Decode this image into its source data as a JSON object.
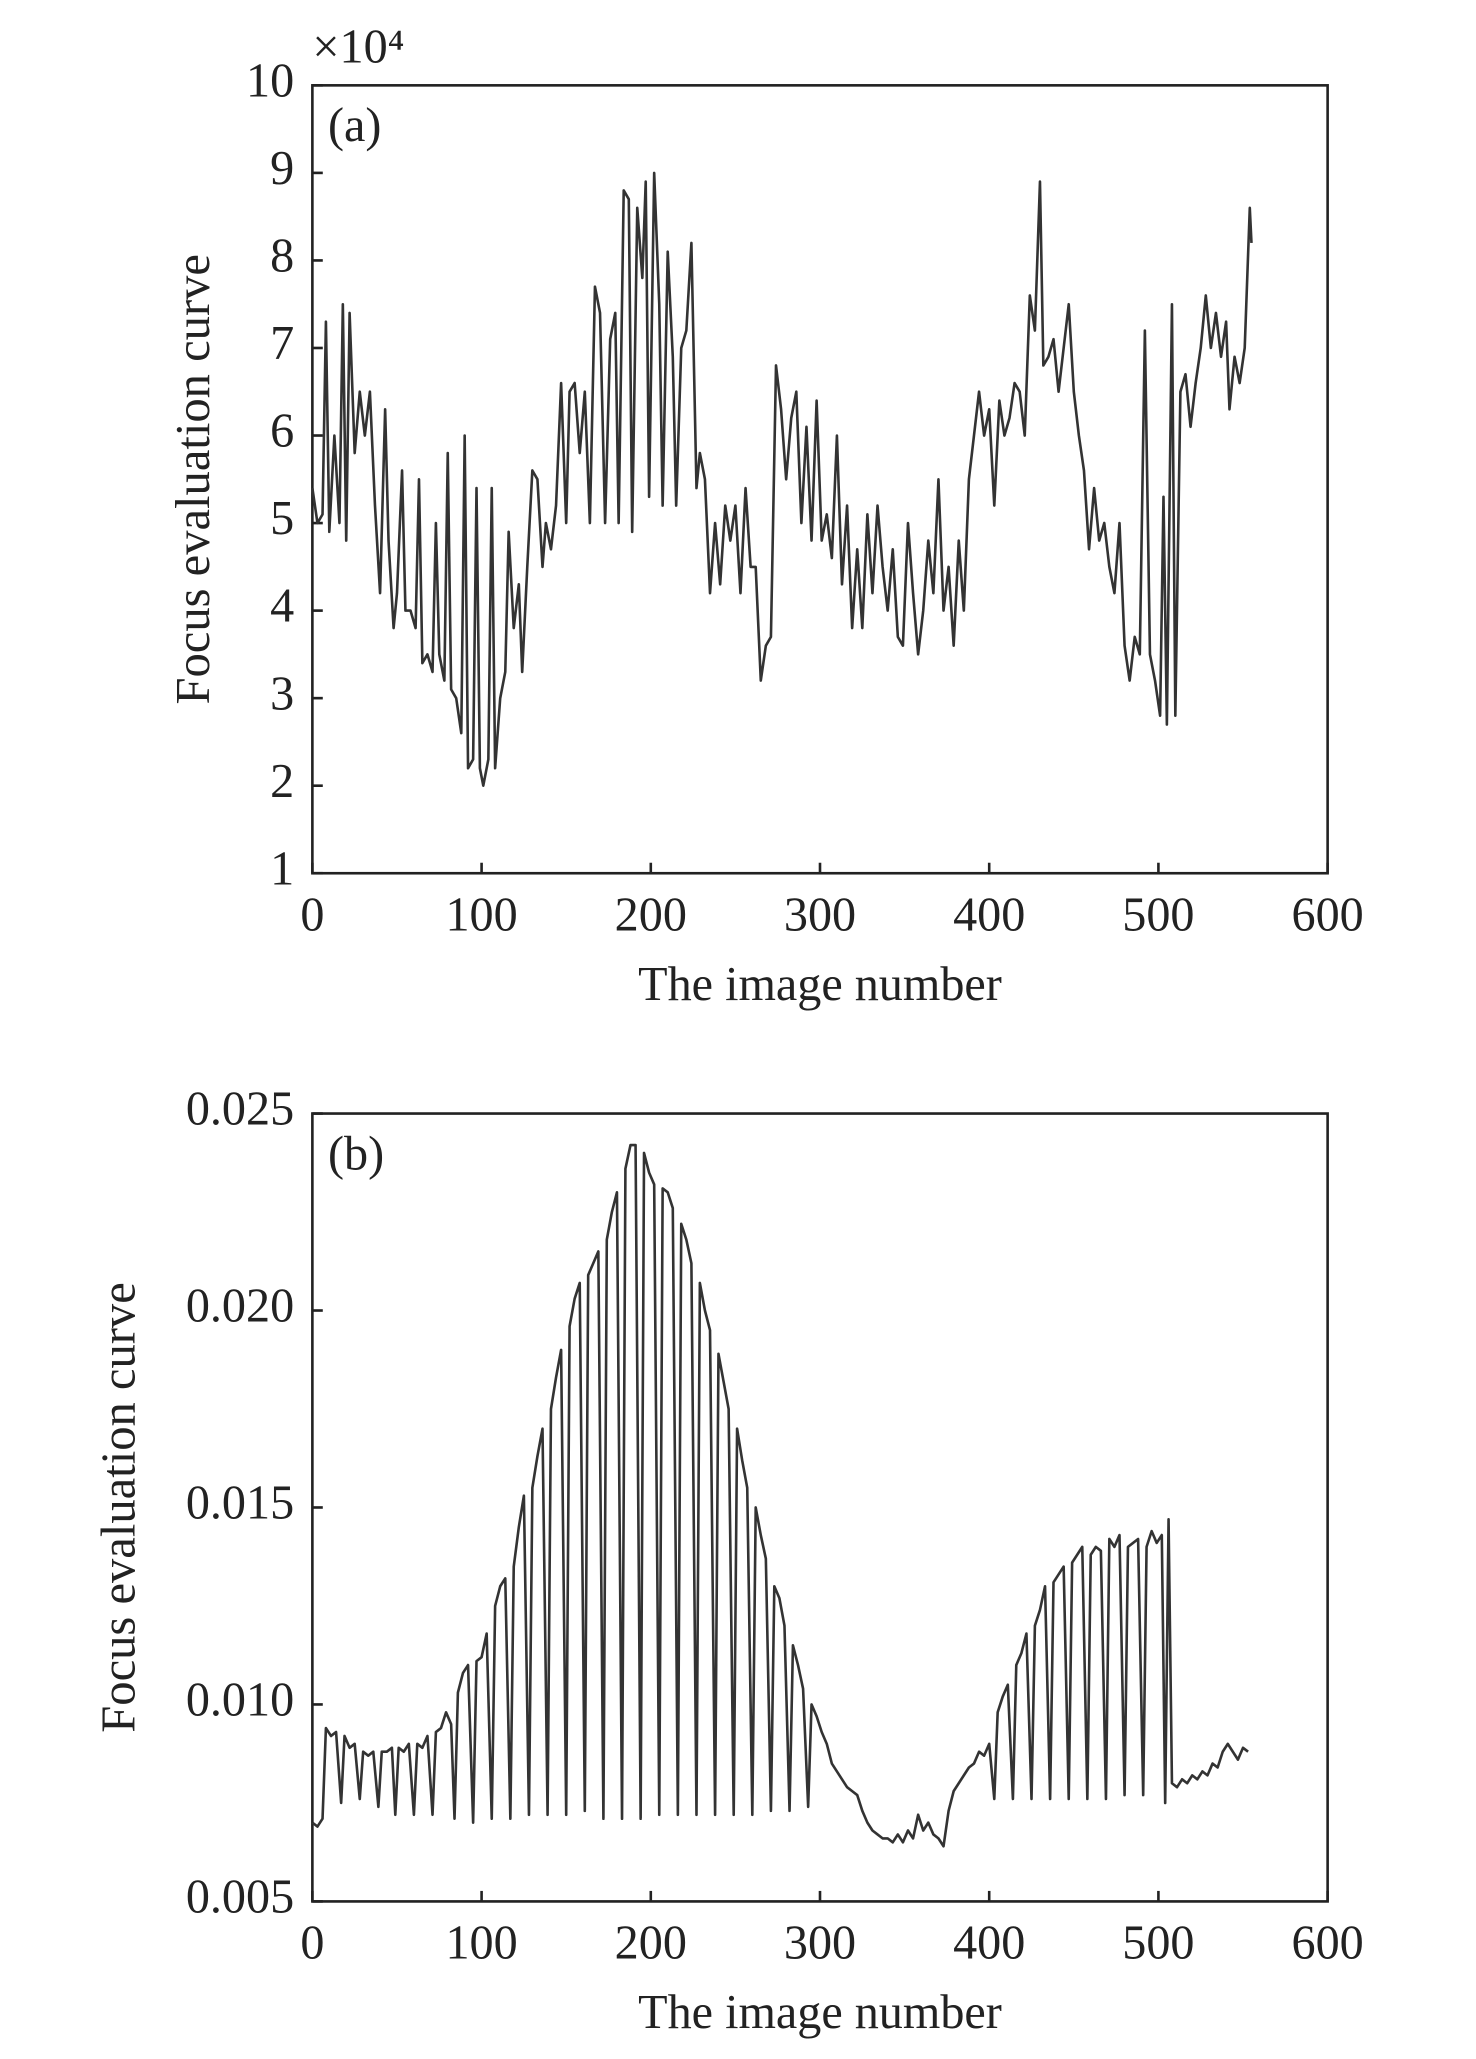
{
  "chart_data": [
    {
      "type": "line",
      "panel_label": "(a)",
      "multiplier": "×10⁴",
      "x_label": "The image number",
      "y_label": "Focus evaluation curve",
      "xlim": [
        0,
        600
      ],
      "xticks": [
        0,
        100,
        200,
        300,
        400,
        500,
        600
      ],
      "ylim": [
        1,
        10
      ],
      "yticks": [
        1,
        2,
        3,
        4,
        5,
        6,
        7,
        8,
        9,
        10
      ],
      "color": "#333333",
      "x": [
        0,
        3,
        6,
        8,
        10,
        13,
        16,
        18,
        20,
        22,
        25,
        28,
        31,
        34,
        37,
        40,
        43,
        45,
        48,
        50,
        53,
        55,
        58,
        61,
        63,
        65,
        68,
        71,
        73,
        75,
        78,
        80,
        82,
        85,
        88,
        90,
        92,
        95,
        97,
        99,
        101,
        104,
        106,
        108,
        111,
        114,
        116,
        119,
        122,
        124,
        127,
        130,
        133,
        136,
        138,
        141,
        144,
        147,
        150,
        152,
        155,
        158,
        161,
        164,
        167,
        170,
        173,
        176,
        179,
        181,
        184,
        187,
        189,
        192,
        195,
        197,
        199,
        202,
        205,
        207,
        210,
        213,
        215,
        218,
        221,
        224,
        227,
        229,
        232,
        235,
        238,
        241,
        244,
        247,
        250,
        253,
        256,
        259,
        262,
        265,
        268,
        271,
        274,
        277,
        280,
        283,
        286,
        289,
        292,
        295,
        298,
        301,
        304,
        307,
        310,
        313,
        316,
        319,
        322,
        325,
        328,
        331,
        334,
        337,
        340,
        343,
        346,
        349,
        352,
        355,
        358,
        361,
        364,
        367,
        370,
        373,
        376,
        379,
        382,
        385,
        388,
        391,
        394,
        397,
        400,
        403,
        406,
        409,
        412,
        415,
        418,
        421,
        424,
        427,
        430,
        432,
        435,
        438,
        441,
        444,
        447,
        450,
        453,
        456,
        459,
        462,
        465,
        468,
        471,
        474,
        477,
        480,
        483,
        486,
        489,
        492,
        495,
        498,
        501,
        503,
        505,
        508,
        510,
        513,
        516,
        519,
        522,
        525,
        528,
        531,
        534,
        537,
        540,
        542,
        545,
        548,
        551,
        554,
        555
      ],
      "values": [
        5.4,
        5.0,
        5.1,
        7.3,
        4.9,
        6.0,
        5.0,
        7.5,
        4.8,
        7.4,
        5.8,
        6.5,
        6.0,
        6.5,
        5.2,
        4.2,
        6.3,
        4.8,
        3.8,
        4.2,
        5.6,
        4.0,
        4.0,
        3.8,
        5.5,
        3.4,
        3.5,
        3.3,
        5.0,
        3.5,
        3.2,
        5.8,
        3.1,
        3.0,
        2.6,
        6.0,
        2.2,
        2.3,
        5.4,
        2.2,
        2.0,
        2.3,
        5.4,
        2.2,
        3.0,
        3.3,
        4.9,
        3.8,
        4.3,
        3.3,
        4.5,
        5.6,
        5.5,
        4.5,
        5.0,
        4.7,
        5.2,
        6.6,
        5.0,
        6.5,
        6.6,
        5.8,
        6.5,
        5.0,
        7.7,
        7.4,
        5.0,
        7.1,
        7.4,
        5.0,
        8.8,
        8.7,
        4.9,
        8.6,
        7.8,
        8.9,
        5.3,
        9.0,
        7.5,
        5.2,
        8.1,
        6.9,
        5.2,
        7.0,
        7.2,
        8.2,
        5.4,
        5.8,
        5.5,
        4.2,
        5.0,
        4.3,
        5.2,
        4.8,
        5.2,
        4.2,
        5.4,
        4.5,
        4.5,
        3.2,
        3.6,
        3.7,
        6.8,
        6.3,
        5.5,
        6.2,
        6.5,
        5.0,
        6.1,
        4.8,
        6.4,
        4.8,
        5.1,
        4.6,
        6.0,
        4.3,
        5.2,
        3.8,
        4.7,
        3.8,
        5.1,
        4.2,
        5.2,
        4.5,
        4.0,
        4.7,
        3.7,
        3.6,
        5.0,
        4.2,
        3.5,
        4.0,
        4.8,
        4.2,
        5.5,
        4.0,
        4.5,
        3.6,
        4.8,
        4.0,
        5.5,
        6.0,
        6.5,
        6.0,
        6.3,
        5.2,
        6.4,
        6.0,
        6.2,
        6.6,
        6.5,
        6.0,
        7.6,
        7.2,
        8.9,
        6.8,
        6.9,
        7.1,
        6.5,
        7.0,
        7.5,
        6.5,
        6.0,
        5.6,
        4.7,
        5.4,
        4.8,
        5.0,
        4.5,
        4.2,
        5.0,
        3.6,
        3.2,
        3.7,
        3.5,
        7.2,
        3.5,
        3.2,
        2.8,
        5.3,
        2.7,
        7.5,
        2.8,
        6.5,
        6.7,
        6.1,
        6.6,
        7.0,
        7.6,
        7.0,
        7.4,
        6.9,
        7.3,
        6.3,
        6.9,
        6.6,
        7.0,
        8.6,
        8.2
      ]
    },
    {
      "type": "line",
      "panel_label": "(b)",
      "x_label": "The image number",
      "y_label": "Focus evaluation curve",
      "xlim": [
        0,
        600
      ],
      "xticks": [
        0,
        100,
        200,
        300,
        400,
        500,
        600
      ],
      "ylim": [
        0.005,
        0.025
      ],
      "yticks": [
        0.005,
        {
          "value": 0.01,
          "label": "0.010"
        },
        0.015,
        {
          "value": 0.02,
          "label": "0.020"
        },
        0.025
      ],
      "color": "#333333",
      "x": [
        0,
        3,
        6,
        8,
        11,
        14,
        17,
        19,
        22,
        25,
        28,
        30,
        33,
        36,
        39,
        41,
        44,
        47,
        49,
        51,
        54,
        57,
        60,
        62,
        65,
        68,
        71,
        73,
        76,
        79,
        82,
        84,
        86,
        89,
        92,
        95,
        97,
        100,
        103,
        106,
        108,
        111,
        114,
        117,
        119,
        122,
        125,
        128,
        130,
        133,
        136,
        139,
        141,
        144,
        147,
        150,
        152,
        155,
        158,
        161,
        163,
        166,
        169,
        172,
        174,
        177,
        180,
        183,
        185,
        188,
        191,
        194,
        196,
        199,
        202,
        205,
        207,
        210,
        213,
        216,
        218,
        221,
        224,
        227,
        229,
        232,
        235,
        238,
        240,
        243,
        246,
        249,
        251,
        254,
        257,
        260,
        262,
        265,
        268,
        271,
        273,
        276,
        279,
        282,
        284,
        287,
        290,
        293,
        295,
        298,
        301,
        304,
        307,
        310,
        313,
        316,
        319,
        322,
        325,
        328,
        331,
        334,
        337,
        340,
        343,
        346,
        349,
        352,
        355,
        358,
        361,
        364,
        367,
        370,
        373,
        376,
        379,
        382,
        385,
        388,
        391,
        394,
        397,
        400,
        403,
        405,
        408,
        411,
        414,
        416,
        419,
        422,
        425,
        427,
        430,
        433,
        436,
        438,
        441,
        444,
        447,
        449,
        452,
        455,
        458,
        460,
        463,
        466,
        469,
        471,
        474,
        477,
        480,
        482,
        485,
        488,
        491,
        493,
        496,
        499,
        502,
        504,
        506,
        508,
        511,
        514,
        517,
        520,
        523,
        526,
        529,
        532,
        535,
        538,
        541,
        544,
        547,
        550,
        553
      ],
      "values": [
        0.007,
        0.0069,
        0.0071,
        0.0094,
        0.0092,
        0.0093,
        0.0075,
        0.0092,
        0.0089,
        0.009,
        0.0076,
        0.0088,
        0.0087,
        0.0088,
        0.0074,
        0.0088,
        0.0088,
        0.0089,
        0.0072,
        0.0089,
        0.0088,
        0.009,
        0.0072,
        0.009,
        0.0089,
        0.0092,
        0.0072,
        0.0093,
        0.0094,
        0.0098,
        0.0095,
        0.0071,
        0.0103,
        0.0108,
        0.011,
        0.007,
        0.0111,
        0.0112,
        0.0118,
        0.0071,
        0.0125,
        0.013,
        0.0132,
        0.0071,
        0.0135,
        0.0145,
        0.0153,
        0.0072,
        0.0155,
        0.0163,
        0.017,
        0.0072,
        0.0175,
        0.0183,
        0.019,
        0.0072,
        0.0196,
        0.0203,
        0.0207,
        0.0073,
        0.0209,
        0.0212,
        0.0215,
        0.0071,
        0.0218,
        0.0225,
        0.023,
        0.0071,
        0.0236,
        0.0242,
        0.0242,
        0.0071,
        0.024,
        0.0235,
        0.0232,
        0.0072,
        0.0231,
        0.023,
        0.0226,
        0.0072,
        0.0222,
        0.0218,
        0.0212,
        0.0072,
        0.0207,
        0.02,
        0.0195,
        0.0072,
        0.0189,
        0.0182,
        0.0175,
        0.0072,
        0.017,
        0.0162,
        0.0155,
        0.0072,
        0.015,
        0.0143,
        0.0137,
        0.0073,
        0.013,
        0.0127,
        0.012,
        0.0073,
        0.0115,
        0.011,
        0.0104,
        0.0074,
        0.01,
        0.0097,
        0.0093,
        0.009,
        0.0085,
        0.0083,
        0.0081,
        0.0079,
        0.0078,
        0.0077,
        0.0073,
        0.007,
        0.0068,
        0.0067,
        0.0066,
        0.0066,
        0.0065,
        0.0067,
        0.0065,
        0.0068,
        0.0066,
        0.0072,
        0.0068,
        0.007,
        0.0067,
        0.0066,
        0.0064,
        0.0073,
        0.0078,
        0.008,
        0.0082,
        0.0084,
        0.0085,
        0.0088,
        0.0087,
        0.009,
        0.0076,
        0.0098,
        0.0102,
        0.0105,
        0.0076,
        0.011,
        0.0113,
        0.0118,
        0.0076,
        0.012,
        0.0124,
        0.013,
        0.0076,
        0.0131,
        0.0133,
        0.0135,
        0.0076,
        0.0136,
        0.0138,
        0.014,
        0.0076,
        0.0138,
        0.014,
        0.0139,
        0.0076,
        0.0142,
        0.014,
        0.0143,
        0.0077,
        0.014,
        0.0141,
        0.0142,
        0.0077,
        0.014,
        0.0144,
        0.0141,
        0.0143,
        0.0075,
        0.0147,
        0.008,
        0.0079,
        0.0081,
        0.008,
        0.0082,
        0.0081,
        0.0083,
        0.0082,
        0.0085,
        0.0084,
        0.0088,
        0.009,
        0.0088,
        0.0086,
        0.0089,
        0.0088
      ]
    }
  ]
}
